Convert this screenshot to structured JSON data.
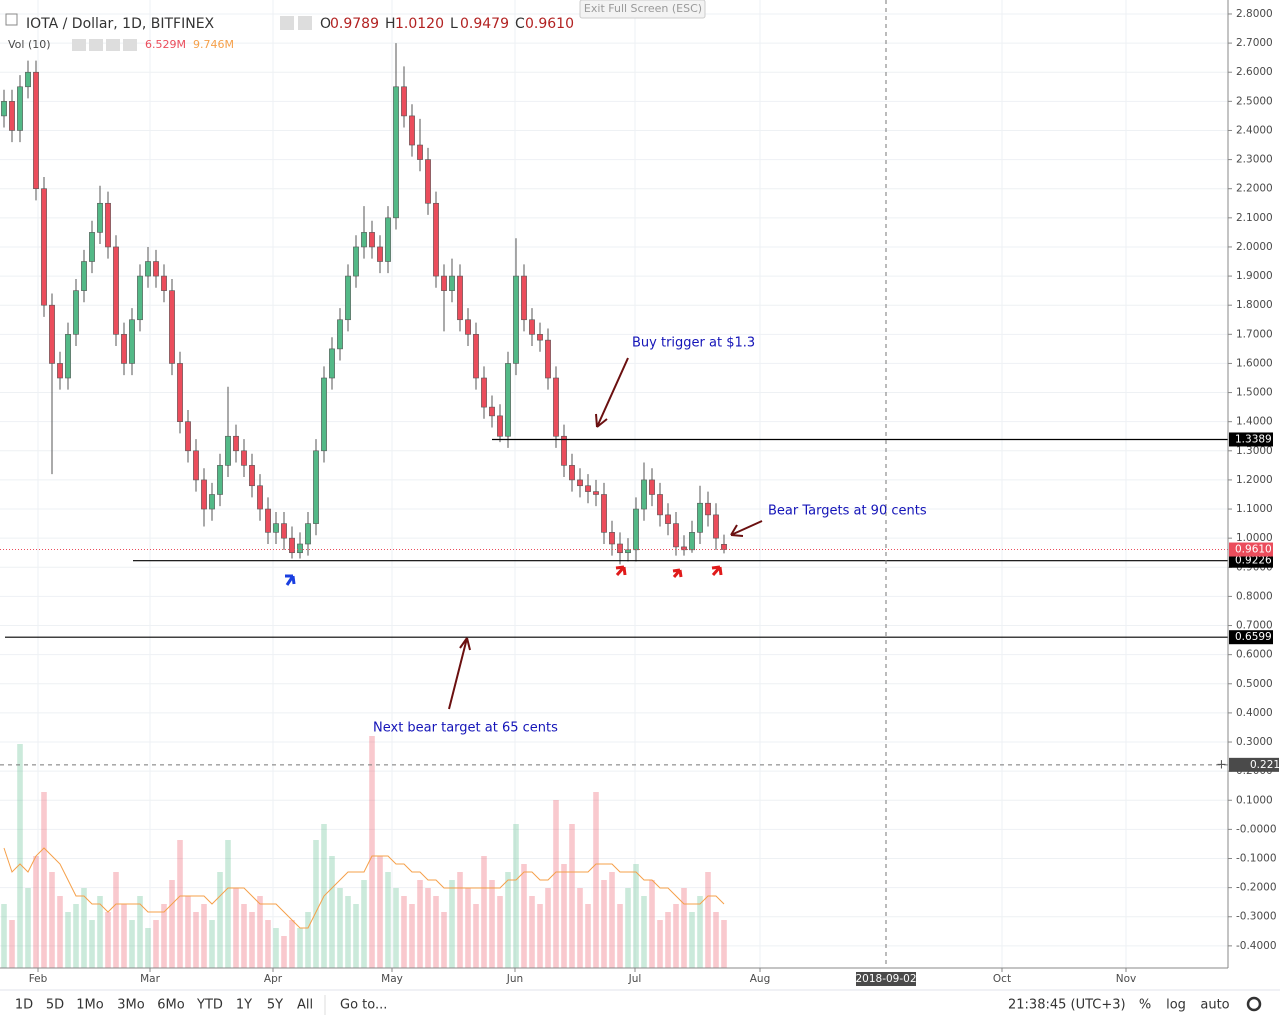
{
  "chart_data": {
    "type": "candlestick",
    "title": "IOTA / Dollar, 1D, BITFINEX",
    "ohlc_header": [
      {
        "label": "O",
        "value": "0.9789"
      },
      {
        "label": "H",
        "value": "1.0120"
      },
      {
        "label": "L",
        "value": "0.9479"
      },
      {
        "label": "C",
        "value": "0.9610"
      }
    ],
    "volume_title": "Vol (10)",
    "volume_header": [
      "6.529M",
      "9.746M"
    ],
    "up_color": "#53b987",
    "down_color": "#eb4d5c",
    "ma_color": "#f5a04a",
    "grid": true,
    "x": [
      1,
      3,
      5,
      7,
      9,
      11,
      13,
      15,
      17,
      19,
      21,
      23,
      25,
      27,
      29,
      31,
      33,
      35,
      37,
      39,
      41,
      43,
      45,
      47,
      49,
      51,
      53,
      55,
      57,
      59,
      61,
      63,
      65,
      67,
      69,
      71,
      73,
      75,
      77,
      79,
      81,
      83,
      85,
      87,
      89,
      91,
      93,
      95,
      97,
      99,
      101,
      103,
      105,
      107,
      109,
      111,
      113,
      115,
      117,
      119,
      121,
      123,
      125,
      127,
      129,
      131,
      133,
      135,
      137,
      139,
      141,
      143,
      145,
      147,
      149,
      151,
      153,
      155,
      157,
      159,
      161,
      163,
      165,
      167,
      169,
      171,
      173,
      175,
      177,
      179,
      181
    ],
    "candles": [
      [
        2.45,
        2.54,
        2.41,
        2.5
      ],
      [
        2.5,
        2.54,
        2.36,
        2.4
      ],
      [
        2.4,
        2.59,
        2.36,
        2.55
      ],
      [
        2.55,
        2.64,
        2.51,
        2.6
      ],
      [
        2.6,
        2.64,
        2.16,
        2.2
      ],
      [
        2.2,
        2.24,
        1.76,
        1.8
      ],
      [
        1.8,
        1.84,
        1.22,
        1.6
      ],
      [
        1.6,
        1.64,
        1.51,
        1.55
      ],
      [
        1.55,
        1.74,
        1.51,
        1.7
      ],
      [
        1.7,
        1.89,
        1.66,
        1.85
      ],
      [
        1.85,
        1.99,
        1.81,
        1.95
      ],
      [
        1.95,
        2.09,
        1.91,
        2.05
      ],
      [
        2.05,
        2.21,
        2.01,
        2.15
      ],
      [
        2.15,
        2.19,
        1.96,
        2.0
      ],
      [
        2.0,
        2.04,
        1.66,
        1.7
      ],
      [
        1.7,
        1.74,
        1.56,
        1.6
      ],
      [
        1.6,
        1.79,
        1.56,
        1.75
      ],
      [
        1.75,
        1.94,
        1.71,
        1.9
      ],
      [
        1.9,
        2.0,
        1.86,
        1.95
      ],
      [
        1.95,
        1.99,
        1.86,
        1.9
      ],
      [
        1.9,
        1.94,
        1.81,
        1.85
      ],
      [
        1.85,
        1.89,
        1.56,
        1.6
      ],
      [
        1.6,
        1.64,
        1.36,
        1.4
      ],
      [
        1.4,
        1.44,
        1.26,
        1.3
      ],
      [
        1.3,
        1.34,
        1.16,
        1.2
      ],
      [
        1.2,
        1.24,
        1.04,
        1.1
      ],
      [
        1.1,
        1.19,
        1.06,
        1.15
      ],
      [
        1.15,
        1.29,
        1.11,
        1.25
      ],
      [
        1.25,
        1.52,
        1.21,
        1.35
      ],
      [
        1.35,
        1.39,
        1.26,
        1.3
      ],
      [
        1.3,
        1.34,
        1.21,
        1.25
      ],
      [
        1.25,
        1.29,
        1.14,
        1.18
      ],
      [
        1.18,
        1.22,
        1.06,
        1.1
      ],
      [
        1.1,
        1.14,
        0.98,
        1.02
      ],
      [
        1.02,
        1.09,
        0.98,
        1.05
      ],
      [
        1.05,
        1.09,
        0.96,
        1.0
      ],
      [
        1.0,
        1.04,
        0.93,
        0.95
      ],
      [
        0.95,
        1.02,
        0.93,
        0.98
      ],
      [
        0.98,
        1.09,
        0.94,
        1.05
      ],
      [
        1.05,
        1.34,
        1.01,
        1.3
      ],
      [
        1.3,
        1.59,
        1.26,
        1.55
      ],
      [
        1.55,
        1.69,
        1.51,
        1.65
      ],
      [
        1.65,
        1.79,
        1.61,
        1.75
      ],
      [
        1.75,
        1.94,
        1.71,
        1.9
      ],
      [
        1.9,
        2.04,
        1.86,
        2.0
      ],
      [
        2.0,
        2.14,
        1.96,
        2.05
      ],
      [
        2.05,
        2.09,
        1.96,
        2.0
      ],
      [
        2.0,
        2.04,
        1.91,
        1.95
      ],
      [
        1.95,
        2.14,
        1.91,
        2.1
      ],
      [
        2.1,
        2.7,
        2.06,
        2.55
      ],
      [
        2.55,
        2.62,
        2.41,
        2.45
      ],
      [
        2.45,
        2.49,
        2.31,
        2.35
      ],
      [
        2.35,
        2.44,
        2.26,
        2.3
      ],
      [
        2.3,
        2.34,
        2.11,
        2.15
      ],
      [
        2.15,
        2.19,
        1.86,
        1.9
      ],
      [
        1.9,
        1.94,
        1.71,
        1.85
      ],
      [
        1.85,
        1.96,
        1.81,
        1.9
      ],
      [
        1.9,
        1.94,
        1.71,
        1.75
      ],
      [
        1.75,
        1.79,
        1.66,
        1.7
      ],
      [
        1.7,
        1.74,
        1.51,
        1.55
      ],
      [
        1.55,
        1.59,
        1.41,
        1.45
      ],
      [
        1.45,
        1.49,
        1.38,
        1.42
      ],
      [
        1.42,
        1.46,
        1.33,
        1.35
      ],
      [
        1.35,
        1.64,
        1.31,
        1.6
      ],
      [
        1.6,
        2.03,
        1.56,
        1.9
      ],
      [
        1.9,
        1.94,
        1.71,
        1.75
      ],
      [
        1.75,
        1.79,
        1.66,
        1.7
      ],
      [
        1.7,
        1.74,
        1.64,
        1.68
      ],
      [
        1.68,
        1.72,
        1.51,
        1.55
      ],
      [
        1.55,
        1.59,
        1.31,
        1.35
      ],
      [
        1.35,
        1.39,
        1.21,
        1.25
      ],
      [
        1.25,
        1.29,
        1.16,
        1.2
      ],
      [
        1.2,
        1.24,
        1.14,
        1.18
      ],
      [
        1.18,
        1.22,
        1.12,
        1.16
      ],
      [
        1.16,
        1.2,
        1.11,
        1.15
      ],
      [
        1.15,
        1.19,
        0.98,
        1.02
      ],
      [
        1.02,
        1.06,
        0.94,
        0.98
      ],
      [
        0.98,
        1.02,
        0.91,
        0.95
      ],
      [
        0.95,
        1.0,
        0.92,
        0.96
      ],
      [
        0.96,
        1.14,
        0.92,
        1.1
      ],
      [
        1.1,
        1.26,
        1.06,
        1.2
      ],
      [
        1.2,
        1.24,
        1.11,
        1.15
      ],
      [
        1.15,
        1.19,
        1.04,
        1.08
      ],
      [
        1.08,
        1.12,
        1.01,
        1.05
      ],
      [
        1.05,
        1.09,
        0.94,
        0.97
      ],
      [
        0.97,
        1.01,
        0.94,
        0.96
      ],
      [
        0.96,
        1.06,
        0.95,
        1.02
      ],
      [
        1.02,
        1.18,
        0.98,
        1.12
      ],
      [
        1.12,
        1.16,
        1.04,
        1.08
      ],
      [
        1.08,
        1.12,
        0.96,
        1.0
      ],
      [
        0.9789,
        1.012,
        0.9479,
        0.961
      ]
    ],
    "volume": [
      8,
      6,
      28,
      10,
      14,
      22,
      12,
      9,
      7,
      8,
      10,
      6,
      9,
      7,
      12,
      8,
      6,
      9,
      5,
      6,
      8,
      11,
      16,
      9,
      7,
      8,
      6,
      12,
      16,
      10,
      8,
      7,
      9,
      6,
      5,
      4,
      6,
      5,
      7,
      16,
      18,
      14,
      10,
      9,
      8,
      11,
      29,
      14,
      12,
      10,
      9,
      8,
      11,
      10,
      9,
      7,
      11,
      12,
      10,
      8,
      14,
      11,
      9,
      12,
      18,
      13,
      9,
      8,
      10,
      21,
      13,
      18,
      10,
      8,
      22,
      11,
      12,
      8,
      10,
      13,
      9,
      11,
      6,
      7,
      8,
      10,
      7,
      9,
      12,
      7,
      6
    ],
    "volume_ma": [
      15,
      12,
      13,
      12,
      14,
      15,
      14,
      13,
      11,
      9,
      9,
      8,
      8,
      7,
      8,
      8,
      8,
      8,
      7,
      7,
      7,
      8,
      9,
      9,
      9,
      9,
      8,
      9,
      10,
      10,
      10,
      9,
      8,
      8,
      8,
      7,
      6,
      5,
      5,
      7,
      9,
      10,
      11,
      12,
      12,
      12,
      14,
      14,
      14,
      13,
      13,
      12,
      12,
      11,
      11,
      10,
      10,
      10,
      10,
      10,
      10,
      10,
      10,
      11,
      11,
      12,
      12,
      11,
      11,
      12,
      12,
      12,
      12,
      12,
      13,
      13,
      13,
      12,
      12,
      12,
      11,
      11,
      10,
      10,
      9,
      8,
      8,
      8,
      9,
      9,
      8
    ],
    "volume_ylim": [
      0,
      121
    ],
    "xlim": [
      0,
      307
    ],
    "xticks": [
      {
        "value": 9.5,
        "label": "Feb"
      },
      {
        "value": 37.5,
        "label": "Mar"
      },
      {
        "value": 68.25,
        "label": "Apr"
      },
      {
        "value": 98,
        "label": "May"
      },
      {
        "value": 128.75,
        "label": "Jun"
      },
      {
        "value": 158.75,
        "label": "Jul"
      },
      {
        "value": 190,
        "label": "Aug"
      },
      {
        "value": 250.5,
        "label": "Oct"
      },
      {
        "value": 281.5,
        "label": "Nov"
      }
    ],
    "crosshair_x": {
      "value": 221.5,
      "label": "2018-09-02"
    },
    "ylim": [
      -0.476,
      2.848
    ],
    "yticks": [
      {
        "value": 2.8,
        "label": "2.8000"
      },
      {
        "value": 2.7,
        "label": "2.7000"
      },
      {
        "value": 2.6,
        "label": "2.6000"
      },
      {
        "value": 2.5,
        "label": "2.5000"
      },
      {
        "value": 2.4,
        "label": "2.4000"
      },
      {
        "value": 2.3,
        "label": "2.3000"
      },
      {
        "value": 2.2,
        "label": "2.2000"
      },
      {
        "value": 2.1,
        "label": "2.1000"
      },
      {
        "value": 2.0,
        "label": "2.0000"
      },
      {
        "value": 1.9,
        "label": "1.9000"
      },
      {
        "value": 1.8,
        "label": "1.8000"
      },
      {
        "value": 1.7,
        "label": "1.7000"
      },
      {
        "value": 1.6,
        "label": "1.6000"
      },
      {
        "value": 1.5,
        "label": "1.5000"
      },
      {
        "value": 1.4,
        "label": "1.4000"
      },
      {
        "value": 1.3,
        "label": "1.3000"
      },
      {
        "value": 1.2,
        "label": "1.2000"
      },
      {
        "value": 1.1,
        "label": "1.1000"
      },
      {
        "value": 1.0,
        "label": "1.0000"
      },
      {
        "value": 0.9,
        "label": "0.9000"
      },
      {
        "value": 0.8,
        "label": "0.8000"
      },
      {
        "value": 0.7,
        "label": "0.7000"
      },
      {
        "value": 0.6,
        "label": "0.6000"
      },
      {
        "value": 0.5,
        "label": "0.5000"
      },
      {
        "value": 0.4,
        "label": "0.4000"
      },
      {
        "value": 0.3,
        "label": "0.3000"
      },
      {
        "value": 0.2,
        "label": "0.2000"
      },
      {
        "value": 0.1,
        "label": "0.1000"
      },
      {
        "value": 0,
        "label": "-0.0000"
      },
      {
        "value": -0.1,
        "label": "-0.1000"
      },
      {
        "value": -0.2,
        "label": "-0.2000"
      },
      {
        "value": -0.3,
        "label": "-0.3000"
      },
      {
        "value": -0.4,
        "label": "-0.4000"
      }
    ],
    "hlines": [
      {
        "value": 1.3389,
        "from": 123
      },
      {
        "value": 0.9226,
        "from": 33.25
      },
      {
        "value": 0.6599,
        "from": 1.25
      }
    ],
    "last_price": {
      "value": 0.961,
      "label": "0.9610"
    },
    "crosshair_y": 0.2216,
    "annotations": [
      "Buy trigger at $1.3",
      "Bear Targets at 90 cents",
      "Next bear target at 65 cents"
    ]
  },
  "toolbar": {
    "ranges": [
      "1D",
      "5D",
      "1Mo",
      "3Mo",
      "6Mo",
      "YTD",
      "1Y",
      "5Y",
      "All"
    ],
    "goto": "Go to...",
    "clock": "21:38:45 (UTC+3)",
    "options": [
      "%",
      "log",
      "auto"
    ]
  },
  "overlay": {
    "exit": "Exit Full Screen (ESC)"
  }
}
